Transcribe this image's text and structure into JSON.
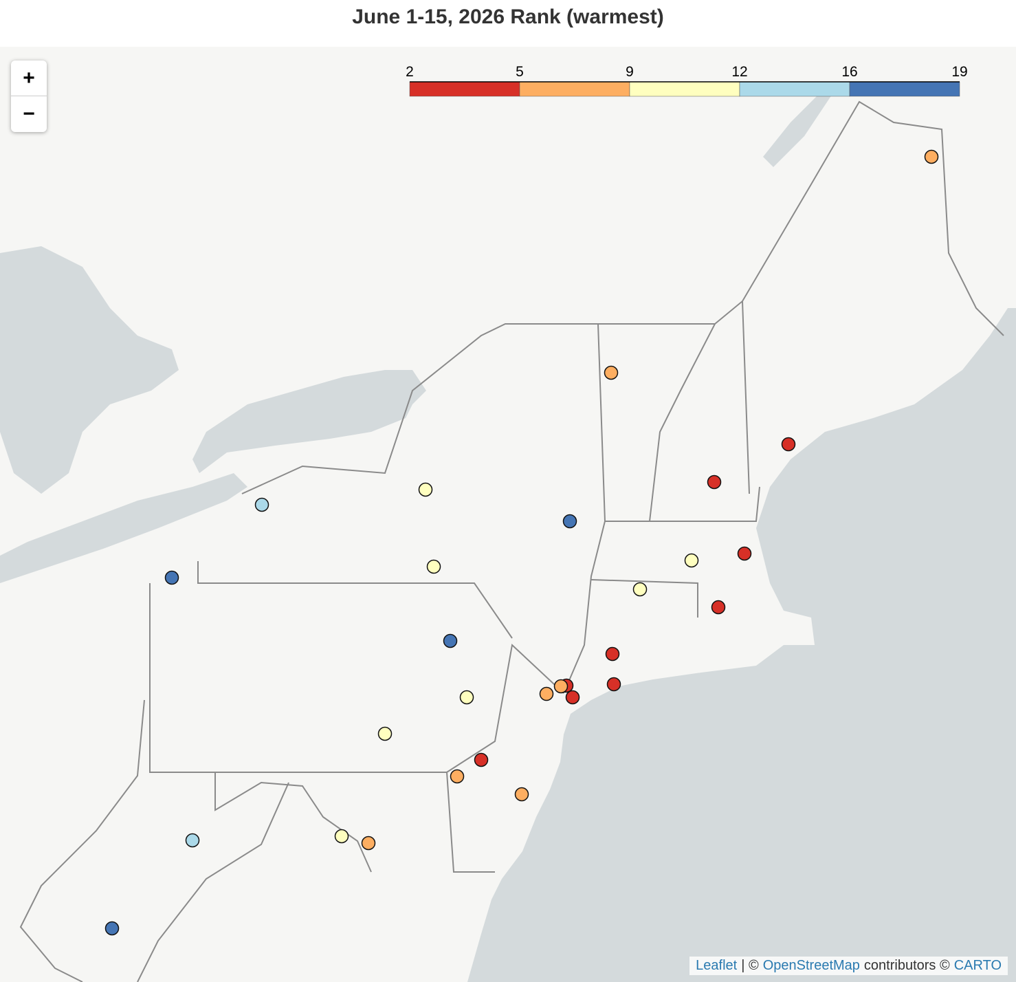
{
  "title": "June 1-15, 2026 Rank (warmest)",
  "zoom": {
    "in": "+",
    "out": "−"
  },
  "legend": {
    "ticks": [
      2,
      5,
      9,
      12,
      16,
      19
    ],
    "colors": [
      "#d73027",
      "#fdae61",
      "#ffffbf",
      "#abd9e9",
      "#4575b4"
    ]
  },
  "attribution": {
    "leaflet": "Leaflet",
    "separator": "| ©",
    "osm": "OpenStreetMap",
    "contributors": "contributors ©",
    "carto": "CARTO"
  }
}
